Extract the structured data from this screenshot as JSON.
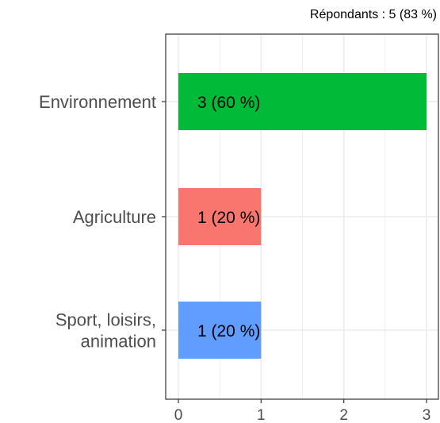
{
  "chart_data": {
    "type": "bar",
    "orientation": "horizontal",
    "subtitle": "Répondants : 5 (83 %)",
    "categories": [
      {
        "lines": [
          "Environnement"
        ]
      },
      {
        "lines": [
          "Agriculture"
        ]
      },
      {
        "lines": [
          "Sport, loisirs,",
          "animation"
        ]
      }
    ],
    "values": [
      3,
      1,
      1
    ],
    "data_labels": [
      "3 (60 %)",
      "1 (20 %)",
      "1 (20 %)"
    ],
    "colors": [
      "#00BA38",
      "#F8766D",
      "#619CFF"
    ],
    "xlim": [
      0,
      3
    ],
    "xticks": [
      0,
      1,
      2,
      3
    ],
    "tick_labels": [
      "0",
      "1",
      "2",
      "3"
    ],
    "grid": true,
    "legend": "none"
  }
}
